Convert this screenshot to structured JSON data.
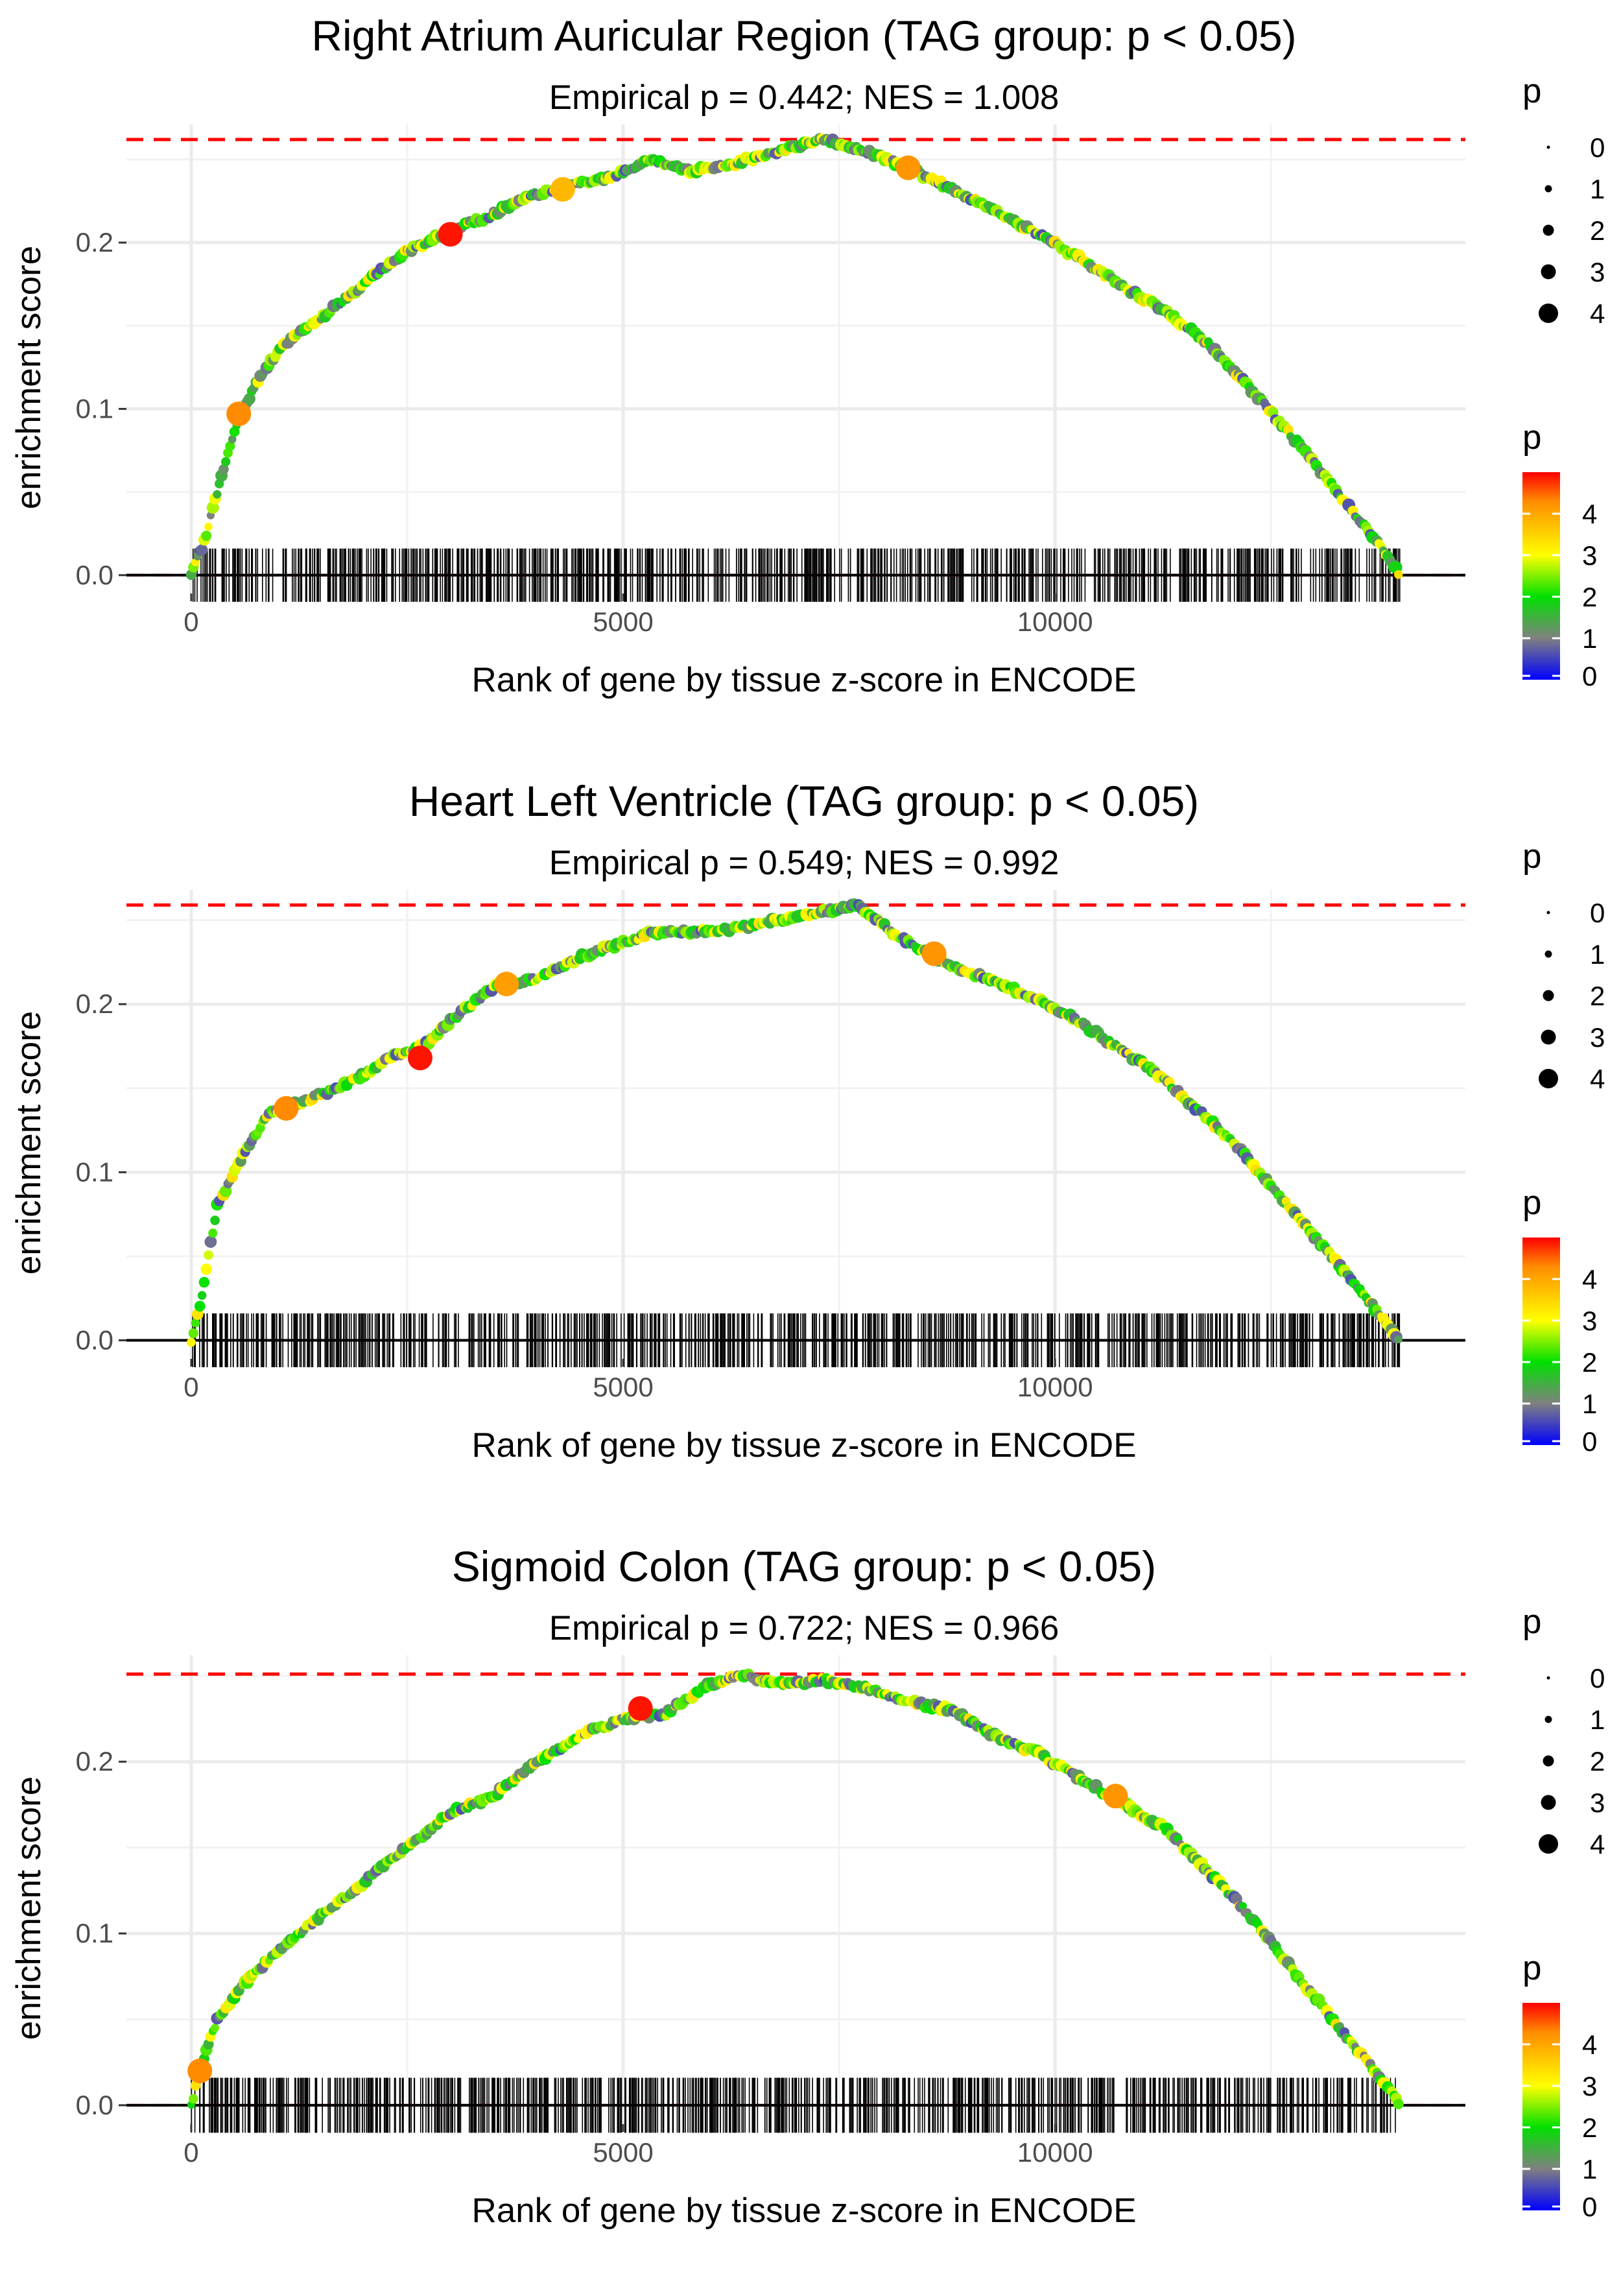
{
  "figure": {
    "legend_size_title": "p",
    "legend_color_title": "p"
  },
  "chart_data": [
    {
      "type": "line",
      "title": "Right Atrium Auricular Region (TAG group: p < 0.05)",
      "subtitle": "Empirical p = 0.442; NES = 1.008",
      "xlabel": "Rank of gene by tissue z-score in ENCODE",
      "ylabel": "enrichment score",
      "xlim": [
        -750,
        14750
      ],
      "ylim": [
        -0.011,
        0.271
      ],
      "x_ticks": [
        0,
        5000,
        10000
      ],
      "y_ticks": [
        0.0,
        0.1,
        0.2
      ],
      "x_tick_labels": [
        "0",
        "5000",
        "10000"
      ],
      "y_tick_labels": [
        "0.0",
        "0.1",
        "0.2"
      ],
      "max_es_line": 0.262,
      "rug_range": [
        0,
        14000
      ],
      "series": [
        {
          "name": "running enrichment score",
          "x": [
            0,
            150,
            300,
            550,
            800,
            1100,
            1500,
            2000,
            2500,
            2900,
            3400,
            3900,
            4400,
            4900,
            5300,
            5800,
            6300,
            6800,
            7300,
            7800,
            8300,
            8800,
            9300,
            9800,
            10300,
            10800,
            11300,
            11800,
            12300,
            12800,
            13300,
            13700,
            14000
          ],
          "y": [
            0.0,
            0.02,
            0.05,
            0.095,
            0.12,
            0.14,
            0.155,
            0.175,
            0.195,
            0.205,
            0.215,
            0.228,
            0.235,
            0.24,
            0.25,
            0.243,
            0.248,
            0.255,
            0.262,
            0.255,
            0.245,
            0.232,
            0.22,
            0.205,
            0.19,
            0.173,
            0.158,
            0.138,
            0.11,
            0.08,
            0.048,
            0.022,
            0.0
          ]
        }
      ],
      "highlight_points": [
        {
          "x": 550,
          "y": 0.097,
          "p": 4.3
        },
        {
          "x": 3000,
          "y": 0.205,
          "p": 4.9
        },
        {
          "x": 4300,
          "y": 0.232,
          "p": 3.8
        },
        {
          "x": 8300,
          "y": 0.245,
          "p": 4.2
        }
      ],
      "legend_size": {
        "title": "p",
        "labels": [
          "0",
          "1",
          "2",
          "3",
          "4"
        ]
      },
      "legend_color": {
        "title": "p",
        "labels": [
          "0",
          "1",
          "2",
          "3",
          "4"
        ],
        "colors": [
          "#0000ff",
          "#808080",
          "#00e000",
          "#ffff00",
          "#ff0000"
        ]
      }
    },
    {
      "type": "line",
      "title": "Heart Left Ventricle (TAG group: p < 0.05)",
      "subtitle": "Empirical p = 0.549; NES = 0.992",
      "xlabel": "Rank of gene by tissue z-score in ENCODE",
      "ylabel": "enrichment score",
      "xlim": [
        -750,
        14750
      ],
      "ylim": [
        -0.011,
        0.268
      ],
      "x_ticks": [
        0,
        5000,
        10000
      ],
      "y_ticks": [
        0.0,
        0.1,
        0.2
      ],
      "x_tick_labels": [
        "0",
        "5000",
        "10000"
      ],
      "y_tick_labels": [
        "0.0",
        "0.1",
        "0.2"
      ],
      "max_es_line": 0.259,
      "rug_range": [
        0,
        14000
      ],
      "series": [
        {
          "name": "running enrichment score",
          "x": [
            0,
            100,
            300,
            600,
            900,
            1200,
            1600,
            2000,
            2300,
            2700,
            3000,
            3500,
            4000,
            4500,
            4900,
            5300,
            5800,
            6300,
            6800,
            7300,
            7700,
            8200,
            8700,
            9200,
            9700,
            10200,
            10700,
            11200,
            11700,
            12200,
            12700,
            13200,
            13600,
            14000
          ],
          "y": [
            0.0,
            0.02,
            0.08,
            0.11,
            0.135,
            0.14,
            0.148,
            0.158,
            0.168,
            0.175,
            0.19,
            0.21,
            0.215,
            0.228,
            0.235,
            0.242,
            0.243,
            0.245,
            0.25,
            0.255,
            0.259,
            0.24,
            0.225,
            0.215,
            0.205,
            0.192,
            0.175,
            0.158,
            0.135,
            0.11,
            0.08,
            0.05,
            0.025,
            0.0
          ]
        }
      ],
      "highlight_points": [
        {
          "x": 1100,
          "y": 0.138,
          "p": 4.3
        },
        {
          "x": 2650,
          "y": 0.168,
          "p": 4.9
        },
        {
          "x": 3650,
          "y": 0.212,
          "p": 4.1
        },
        {
          "x": 8600,
          "y": 0.23,
          "p": 4.2
        }
      ],
      "legend_size": {
        "title": "p",
        "labels": [
          "0",
          "1",
          "2",
          "3",
          "4"
        ]
      },
      "legend_color": {
        "title": "p",
        "labels": [
          "0",
          "1",
          "2",
          "3",
          "4"
        ],
        "colors": [
          "#0000ff",
          "#808080",
          "#00e000",
          "#ffff00",
          "#ff0000"
        ]
      }
    },
    {
      "type": "line",
      "title": "Sigmoid Colon (TAG group: p < 0.05)",
      "subtitle": "Empirical p = 0.722; NES = 0.966",
      "xlabel": "Rank of gene by tissue z-score in ENCODE",
      "ylabel": "enrichment score",
      "xlim": [
        -750,
        14750
      ],
      "ylim": [
        -0.011,
        0.262
      ],
      "x_ticks": [
        0,
        5000,
        10000
      ],
      "y_ticks": [
        0.0,
        0.1,
        0.2
      ],
      "x_tick_labels": [
        "0",
        "5000",
        "10000"
      ],
      "y_tick_labels": [
        "0.0",
        "0.1",
        "0.2"
      ],
      "max_es_line": 0.251,
      "rug_range": [
        0,
        14000
      ],
      "series": [
        {
          "name": "running enrichment score",
          "x": [
            0,
            100,
            300,
            600,
            1000,
            1500,
            2000,
            2500,
            3000,
            3500,
            4000,
            4500,
            5000,
            5500,
            6000,
            6400,
            6800,
            7300,
            7800,
            8300,
            8800,
            9300,
            9800,
            10300,
            10800,
            11300,
            11800,
            12300,
            12800,
            13300,
            13700,
            14000
          ],
          "y": [
            0.0,
            0.02,
            0.05,
            0.07,
            0.09,
            0.11,
            0.13,
            0.15,
            0.17,
            0.18,
            0.2,
            0.215,
            0.225,
            0.228,
            0.245,
            0.251,
            0.245,
            0.248,
            0.243,
            0.235,
            0.23,
            0.215,
            0.205,
            0.19,
            0.175,
            0.16,
            0.135,
            0.108,
            0.075,
            0.045,
            0.02,
            0.0
          ]
        }
      ],
      "highlight_points": [
        {
          "x": 100,
          "y": 0.02,
          "p": 4.3
        },
        {
          "x": 5200,
          "y": 0.231,
          "p": 4.9
        },
        {
          "x": 10700,
          "y": 0.18,
          "p": 4.2
        }
      ],
      "legend_size": {
        "title": "p",
        "labels": [
          "0",
          "1",
          "2",
          "3",
          "4"
        ]
      },
      "legend_color": {
        "title": "p",
        "labels": [
          "0",
          "1",
          "2",
          "3",
          "4"
        ],
        "colors": [
          "#0000ff",
          "#808080",
          "#00e000",
          "#ffff00",
          "#ff0000"
        ]
      }
    }
  ]
}
